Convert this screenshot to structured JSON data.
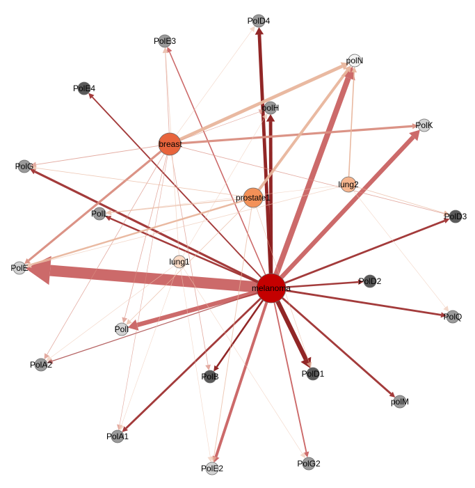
{
  "colors": {
    "background": "#ffffff",
    "cancer_node_fill": {
      "melanoma": "#c40000",
      "breast": "#e8643c",
      "prostate1": "#f39158",
      "lung2": "#f6b58e",
      "lung1": "#fbdcc7"
    },
    "polymerase_node_fill_dark": "#5a5a5a",
    "polymerase_node_fill_mid": "#9a9a9a",
    "polymerase_node_fill_light": "#d2d2d2",
    "edge_colors": [
      "#8b1a1a",
      "#9e3030",
      "#c96262",
      "#d98d80",
      "#e8b59c",
      "#efcbb8"
    ]
  },
  "nodes": [
    {
      "id": "melanoma",
      "label": "melanoma",
      "kind": "cancer"
    },
    {
      "id": "breast",
      "label": "breast",
      "kind": "cancer"
    },
    {
      "id": "prostate1",
      "label": "prostate1",
      "kind": "cancer"
    },
    {
      "id": "lung2",
      "label": "lung2",
      "kind": "cancer"
    },
    {
      "id": "lung1",
      "label": "lung1",
      "kind": "cancer"
    },
    {
      "id": "PolD4",
      "label": "PolD4",
      "kind": "polymerase",
      "shade": "mid"
    },
    {
      "id": "PolE3",
      "label": "PolE3",
      "kind": "polymerase",
      "shade": "mid"
    },
    {
      "id": "polN",
      "label": "polN",
      "kind": "polymerase",
      "shade": "white"
    },
    {
      "id": "PolE4",
      "label": "PolE4",
      "kind": "polymerase",
      "shade": "dark"
    },
    {
      "id": "polH",
      "label": "polH",
      "kind": "polymerase",
      "shade": "mid"
    },
    {
      "id": "PolK",
      "label": "PolK",
      "kind": "polymerase",
      "shade": "light"
    },
    {
      "id": "PolG",
      "label": "PolG",
      "kind": "polymerase",
      "shade": "mid"
    },
    {
      "id": "PolD3",
      "label": "PolD3",
      "kind": "polymerase",
      "shade": "dark"
    },
    {
      "id": "PolL",
      "label": "PolL",
      "kind": "polymerase",
      "shade": "mid"
    },
    {
      "id": "PolE",
      "label": "PolE",
      "kind": "polymerase",
      "shade": "light"
    },
    {
      "id": "PolD2",
      "label": "PolD2",
      "kind": "polymerase",
      "shade": "dark"
    },
    {
      "id": "PolQ",
      "label": "PolQ",
      "kind": "polymerase",
      "shade": "mid"
    },
    {
      "id": "PolI",
      "label": "PolI",
      "kind": "polymerase",
      "shade": "light"
    },
    {
      "id": "PolA2",
      "label": "PolA2",
      "kind": "polymerase",
      "shade": "mid"
    },
    {
      "id": "PolB",
      "label": "PolB",
      "kind": "polymerase",
      "shade": "dark"
    },
    {
      "id": "PolD1",
      "label": "PolD1",
      "kind": "polymerase",
      "shade": "dark"
    },
    {
      "id": "polM",
      "label": "polM",
      "kind": "polymerase",
      "shade": "mid"
    },
    {
      "id": "PolA1",
      "label": "PolA1",
      "kind": "polymerase",
      "shade": "mid"
    },
    {
      "id": "PolE2",
      "label": "PolE2",
      "kind": "polymerase",
      "shade": "light"
    },
    {
      "id": "PolG2",
      "label": "PolG2",
      "kind": "polymerase",
      "shade": "mid"
    }
  ],
  "edges": [
    {
      "source": "melanoma",
      "target": "PolE",
      "weight": 10,
      "tone": 2
    },
    {
      "source": "melanoma",
      "target": "polN",
      "weight": 5,
      "tone": 2
    },
    {
      "source": "melanoma",
      "target": "PolK",
      "weight": 4,
      "tone": 2
    },
    {
      "source": "melanoma",
      "target": "PolI",
      "weight": 4,
      "tone": 2
    },
    {
      "source": "melanoma",
      "target": "PolD1",
      "weight": 4,
      "tone": 0
    },
    {
      "source": "melanoma",
      "target": "PolD4",
      "weight": 3,
      "tone": 0
    },
    {
      "source": "melanoma",
      "target": "polH",
      "weight": 3,
      "tone": 0
    },
    {
      "source": "melanoma",
      "target": "PolE2",
      "weight": 2.5,
      "tone": 2
    },
    {
      "source": "melanoma",
      "target": "PolG",
      "weight": 2,
      "tone": 1
    },
    {
      "source": "melanoma",
      "target": "PolD3",
      "weight": 1.8,
      "tone": 1
    },
    {
      "source": "melanoma",
      "target": "PolQ",
      "weight": 1.8,
      "tone": 1
    },
    {
      "source": "melanoma",
      "target": "polM",
      "weight": 1.8,
      "tone": 1
    },
    {
      "source": "melanoma",
      "target": "PolA1",
      "weight": 1.8,
      "tone": 1
    },
    {
      "source": "melanoma",
      "target": "PolD2",
      "weight": 1.6,
      "tone": 1
    },
    {
      "source": "melanoma",
      "target": "PolB",
      "weight": 1.6,
      "tone": 0
    },
    {
      "source": "melanoma",
      "target": "PolL",
      "weight": 1.6,
      "tone": 1
    },
    {
      "source": "melanoma",
      "target": "PolE4",
      "weight": 1.2,
      "tone": 1
    },
    {
      "source": "melanoma",
      "target": "PolG2",
      "weight": 1.2,
      "tone": 2
    },
    {
      "source": "melanoma",
      "target": "PolE3",
      "weight": 1,
      "tone": 2
    },
    {
      "source": "melanoma",
      "target": "PolA2",
      "weight": 0.8,
      "tone": 1
    },
    {
      "source": "breast",
      "target": "polN",
      "weight": 3,
      "tone": 4
    },
    {
      "source": "breast",
      "target": "PolK",
      "weight": 2,
      "tone": 3
    },
    {
      "source": "breast",
      "target": "PolE",
      "weight": 2,
      "tone": 3
    },
    {
      "source": "breast",
      "target": "PolG",
      "weight": 0.6,
      "tone": 3
    },
    {
      "source": "breast",
      "target": "PolD3",
      "weight": 0.5,
      "tone": 3
    },
    {
      "source": "breast",
      "target": "PolI",
      "weight": 0.5,
      "tone": 3
    },
    {
      "source": "breast",
      "target": "PolA2",
      "weight": 0.5,
      "tone": 3
    },
    {
      "source": "breast",
      "target": "PolB",
      "weight": 0.5,
      "tone": 3
    },
    {
      "source": "breast",
      "target": "PolE3",
      "weight": 0.5,
      "tone": 3
    },
    {
      "source": "breast",
      "target": "PolD4",
      "weight": 0.4,
      "tone": 5
    },
    {
      "source": "breast",
      "target": "PolA1",
      "weight": 0.4,
      "tone": 3
    },
    {
      "source": "breast",
      "target": "polH",
      "weight": 0.4,
      "tone": 3
    },
    {
      "source": "prostate1",
      "target": "polN",
      "weight": 2.5,
      "tone": 4
    },
    {
      "source": "prostate1",
      "target": "PolE",
      "weight": 1.5,
      "tone": 4
    },
    {
      "source": "prostate1",
      "target": "PolL",
      "weight": 0.8,
      "tone": 4
    },
    {
      "source": "prostate1",
      "target": "PolE2",
      "weight": 0.6,
      "tone": 4
    },
    {
      "source": "prostate1",
      "target": "PolG",
      "weight": 0.5,
      "tone": 4
    },
    {
      "source": "prostate1",
      "target": "PolI",
      "weight": 0.5,
      "tone": 4
    },
    {
      "source": "prostate1",
      "target": "PolD1",
      "weight": 0.4,
      "tone": 4
    },
    {
      "source": "lung2",
      "target": "polN",
      "weight": 1,
      "tone": 4
    },
    {
      "source": "lung2",
      "target": "PolD3",
      "weight": 0.5,
      "tone": 4
    },
    {
      "source": "lung2",
      "target": "PolE",
      "weight": 0.5,
      "tone": 5
    },
    {
      "source": "lung2",
      "target": "PolQ",
      "weight": 0.4,
      "tone": 5
    },
    {
      "source": "lung2",
      "target": "PolL",
      "weight": 0.4,
      "tone": 5
    },
    {
      "source": "lung1",
      "target": "PolE3",
      "weight": 0.5,
      "tone": 5
    },
    {
      "source": "lung1",
      "target": "PolA2",
      "weight": 0.4,
      "tone": 5
    },
    {
      "source": "lung1",
      "target": "PolE2",
      "weight": 0.4,
      "tone": 5
    },
    {
      "source": "lung1",
      "target": "PolG2",
      "weight": 0.4,
      "tone": 5
    },
    {
      "source": "lung1",
      "target": "polH",
      "weight": 0.4,
      "tone": 5
    },
    {
      "source": "lung1",
      "target": "PolA1",
      "weight": 0.4,
      "tone": 5
    }
  ]
}
